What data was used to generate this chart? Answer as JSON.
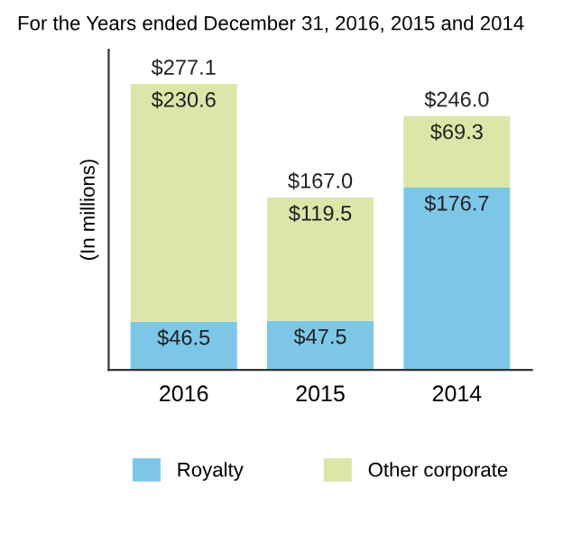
{
  "chart_data": {
    "type": "bar",
    "title": "For the Years ended December 31, 2016, 2015 and 2014",
    "ylabel": "(In millions)",
    "categories": [
      "2016",
      "2015",
      "2014"
    ],
    "stacked": true,
    "tick_labels": "x",
    "grid": false,
    "legend": "bottom",
    "series": [
      {
        "name": "Royalty",
        "color": "#7cc7e8",
        "values": [
          46.5,
          47.5,
          176.7
        ],
        "value_labels": [
          "$46.5",
          "$47.5",
          "$176.7"
        ]
      },
      {
        "name": "Other corporate",
        "color": "#dbe7a9",
        "values": [
          230.6,
          119.5,
          69.3
        ],
        "value_labels": [
          "$230.6",
          "$119.5",
          "$69.3"
        ]
      }
    ],
    "totals": [
      "$277.1",
      "$167.0",
      "$246.0"
    ]
  }
}
